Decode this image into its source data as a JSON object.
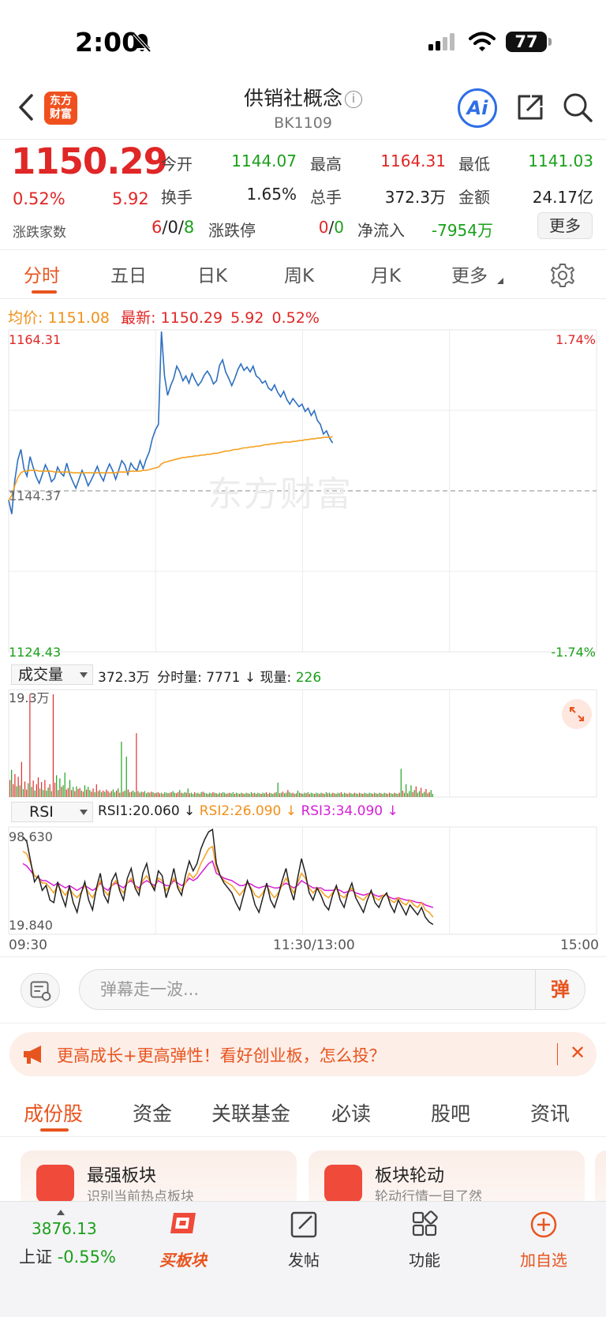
{
  "status_bar": {
    "time": "2:00",
    "battery": "77"
  },
  "header": {
    "back_icon": "chevron-left-icon",
    "logo_text": "东方\n财富",
    "title": "供销社概念",
    "code": "BK1109",
    "ai_label": "Ai"
  },
  "quote": {
    "price": "1150.29",
    "change_pct": "0.52%",
    "change_val": "5.92",
    "open_label": "今开",
    "open": "1144.07",
    "high_label": "最高",
    "high": "1164.31",
    "low_label": "最低",
    "low": "1141.03",
    "turnover_label": "换手",
    "turnover": "1.65%",
    "volume_label": "总手",
    "volume": "372.3万",
    "amount_label": "金额",
    "amount": "24.17亿",
    "updown_label": "涨跌家数",
    "up_count": "6",
    "flat_count": "0",
    "down_count": "8",
    "limit_label": "涨跌停",
    "limit_up": "0",
    "limit_down": "0",
    "netflow_label": "净流入",
    "netflow": "-7954万",
    "more_label": "更多"
  },
  "chart_tabs": [
    "分时",
    "五日",
    "日K",
    "周K",
    "月K",
    "更多"
  ],
  "legend": {
    "avg_label": "均价:",
    "avg": "1151.08",
    "latest_label": "最新:",
    "latest": "1150.29",
    "change": "5.92",
    "pct": "0.52%"
  },
  "watermark": "东方财富",
  "volume_panel": {
    "select": "成交量",
    "total": "372.3万",
    "minute_label": "分时量:",
    "minute": "7771",
    "now_label": "现量:",
    "now": "226",
    "max_label": "19.3万"
  },
  "rsi_panel": {
    "select": "RSI",
    "rsi1": "RSI1:20.060",
    "rsi2": "RSI2:26.090",
    "rsi3": "RSI3:34.090",
    "max_label": "98.630",
    "min_label": "19.840"
  },
  "time_axis": {
    "start": "09:30",
    "mid": "11:30/13:00",
    "end": "15:00"
  },
  "danmaku": {
    "placeholder": "弹幕走一波...",
    "send_label": "弹"
  },
  "ad": {
    "text": "更高成长+更高弹性！看好创业板，怎么投？",
    "close": "✕"
  },
  "info_tabs": [
    "成份股",
    "资金",
    "关联基金",
    "必读",
    "股吧",
    "资讯"
  ],
  "cards": [
    {
      "title": "最强板块",
      "sub": "识别当前热点板块"
    },
    {
      "title": "板块轮动",
      "sub": "轮动行情一目了然"
    }
  ],
  "bottom_bar": {
    "index_value": "3876.13",
    "index_name": "上证",
    "index_change": "-0.55%",
    "buy_sector": "买板块",
    "post": "发帖",
    "functions": "功能",
    "add_watch": "加自选"
  },
  "colors": {
    "up": "#e02626",
    "down": "#1aa01a",
    "accent": "#e8541e",
    "price_line": "#2e6fbf",
    "avg_line": "#f5a020"
  },
  "chart_data": [
    {
      "type": "line",
      "name": "intraday",
      "y_max_label": "1164.31",
      "y_min_label": "1124.43",
      "y_ref_label": "1144.37",
      "pct_max_label": "1.74%",
      "pct_min_label": "-1.74%",
      "ylim": [
        1124.43,
        1164.31
      ],
      "ref": 1144.37,
      "series": [
        {
          "values": [
            1143.2,
            1141.5,
            1145.6,
            1148.2,
            1149.5,
            1147.1,
            1146.2,
            1148.6,
            1147.3,
            1146.1,
            1145.3,
            1146.4,
            1147.6,
            1146.8,
            1145.5,
            1145.9,
            1147.3,
            1146.6,
            1146.2,
            1147.8,
            1146.4,
            1145.5,
            1144.7,
            1145.8,
            1146.9,
            1146.1,
            1145.0,
            1145.7,
            1146.5,
            1147.4,
            1146.3,
            1145.6,
            1146.8,
            1147.7,
            1146.9,
            1145.8,
            1146.9,
            1148.1,
            1147.6,
            1146.4,
            1147.8,
            1147.2,
            1146.9,
            1148.1,
            1147.1,
            1148.3,
            1149.2,
            1150.8,
            1151.9,
            1152.6,
            1164.1,
            1158.6,
            1156.2,
            1157.4,
            1158.3,
            1159.8,
            1159.1,
            1158.0,
            1158.6,
            1157.7,
            1158.9,
            1158.1,
            1157.4,
            1157.9,
            1158.7,
            1159.2,
            1158.6,
            1157.6,
            1158.0,
            1159.9,
            1160.6,
            1159.1,
            1158.3,
            1157.4,
            1158.3,
            1159.4,
            1160.1,
            1159.3,
            1159.7,
            1159.1,
            1159.8,
            1158.6,
            1158.3,
            1157.7,
            1158.0,
            1157.1,
            1156.8,
            1157.5,
            1156.6,
            1156.0,
            1156.7,
            1155.7,
            1155.1,
            1155.8,
            1155.3,
            1154.8,
            1155.1,
            1154.2,
            1154.6,
            1153.7,
            1154.3,
            1153.1,
            1152.6,
            1151.4,
            1151.8,
            1150.9,
            1150.29
          ]
        },
        {
          "values": [
            1143.2,
            1143.8,
            1145.0,
            1146.0,
            1146.6,
            1146.8,
            1146.8,
            1146.9,
            1146.9,
            1146.9,
            1146.8,
            1146.8,
            1146.8,
            1146.8,
            1146.8,
            1146.7,
            1146.7,
            1146.7,
            1146.7,
            1146.7,
            1146.7,
            1146.6,
            1146.6,
            1146.6,
            1146.6,
            1146.6,
            1146.6,
            1146.6,
            1146.6,
            1146.6,
            1146.6,
            1146.6,
            1146.6,
            1146.6,
            1146.6,
            1146.6,
            1146.7,
            1146.7,
            1146.7,
            1146.7,
            1146.8,
            1146.8,
            1146.8,
            1146.8,
            1146.9,
            1146.9,
            1147.0,
            1147.1,
            1147.2,
            1147.3,
            1147.7,
            1147.9,
            1148.0,
            1148.1,
            1148.2,
            1148.3,
            1148.4,
            1148.5,
            1148.5,
            1148.6,
            1148.6,
            1148.7,
            1148.7,
            1148.8,
            1148.8,
            1148.9,
            1148.9,
            1149.0,
            1149.0,
            1149.1,
            1149.2,
            1149.3,
            1149.3,
            1149.4,
            1149.5,
            1149.5,
            1149.6,
            1149.7,
            1149.7,
            1149.8,
            1149.8,
            1149.9,
            1149.9,
            1150.0,
            1150.1,
            1150.1,
            1150.2,
            1150.2,
            1150.3,
            1150.3,
            1150.4,
            1150.4,
            1150.4,
            1150.5,
            1150.5,
            1150.6,
            1150.6,
            1150.7,
            1150.7,
            1150.8,
            1150.8,
            1150.9,
            1150.9,
            1151.0,
            1151.0,
            1151.0,
            1151.08
          ]
        }
      ]
    },
    {
      "type": "bar",
      "name": "volume",
      "ymax": 19.3,
      "values": [
        3.2,
        5.1,
        2.4,
        4.3,
        2.0,
        3.8,
        2.2,
        6.6,
        1.5,
        2.9,
        1.4,
        2.6,
        19.3,
        1.9,
        3.1,
        1.2,
        2.4,
        3.7,
        1.6,
        2.8,
        1.3,
        3.2,
        1.2,
        1.8,
        2.4,
        1.1,
        19.3,
        2.7,
        4.1,
        1.3,
        3.5,
        1.9,
        2.2,
        4.6,
        1.4,
        1.7,
        3.2,
        1.3,
        1.9,
        1.1,
        2.0,
        1.5,
        1.7,
        1.2,
        1.0,
        2.2,
        1.4,
        1.9,
        1.3,
        1.0,
        1.6,
        0.9,
        2.4,
        1.1,
        1.3,
        0.9,
        1.2,
        1.0,
        1.4,
        1.1,
        0.8,
        1.1,
        1.4,
        0.9,
        1.2,
        1.6,
        0.8,
        10.4,
        1.0,
        1.2,
        7.6,
        1.4,
        0.9,
        1.0,
        1.2,
        0.9,
        12.0,
        1.1,
        0.8,
        1.0,
        0.9,
        1.1,
        0.7,
        0.9,
        0.8,
        1.0,
        0.9,
        0.7,
        0.8,
        0.9,
        0.7,
        0.8,
        0.6,
        0.9,
        0.8,
        0.7,
        0.8,
        0.9,
        1.1,
        0.8,
        0.7,
        0.9,
        1.3,
        0.8,
        0.7,
        0.9,
        0.8,
        1.6,
        0.7,
        0.8,
        0.6,
        0.9,
        0.7,
        0.8,
        0.6,
        0.9,
        1.0,
        0.8,
        0.7,
        0.6,
        0.8,
        0.7,
        0.9,
        0.8,
        0.7,
        0.6,
        0.8,
        0.7,
        0.9,
        0.8,
        0.6,
        0.7,
        0.8,
        0.7,
        0.9,
        0.6,
        0.8,
        0.7,
        0.6,
        0.8,
        0.7,
        0.6,
        0.8,
        0.7,
        0.6,
        0.9,
        0.7,
        0.8,
        0.6,
        0.8,
        0.7,
        0.6,
        0.8,
        0.7,
        0.9,
        0.6,
        0.8,
        0.7,
        0.6,
        0.8,
        0.9,
        2.7,
        0.7,
        0.8,
        1.0,
        0.7,
        0.8,
        1.3,
        0.9,
        0.7,
        0.8,
        0.6,
        0.7,
        1.2,
        0.8,
        0.7,
        0.6,
        0.8,
        0.7,
        0.9,
        0.6,
        0.8,
        0.7,
        0.6,
        0.8,
        0.7,
        0.6,
        0.8,
        0.7,
        0.6,
        0.9,
        0.7,
        0.8,
        0.6,
        0.8,
        0.7,
        0.6,
        0.8,
        0.7,
        0.9,
        0.6,
        0.8,
        0.7,
        0.6,
        0.8,
        0.7,
        0.6,
        0.8,
        0.7,
        0.6,
        0.8,
        0.7,
        0.6,
        0.8,
        0.7,
        0.6,
        0.8,
        0.7,
        0.6,
        0.8,
        0.7,
        0.6,
        0.8,
        0.7,
        0.6,
        0.8,
        0.7,
        0.6,
        0.8,
        0.7,
        0.6,
        0.8,
        0.7,
        0.6,
        0.8,
        5.3,
        1.2,
        0.8,
        2.4,
        0.7,
        1.1,
        2.2,
        0.9,
        1.3,
        2.0,
        0.8,
        1.1,
        1.7,
        0.7,
        1.0,
        1.5,
        0.7,
        0.9,
        1.3,
        0.6
      ],
      "up": [
        1,
        0,
        1,
        1,
        0,
        1,
        0,
        1,
        0,
        1,
        1,
        0,
        1,
        0,
        1,
        0,
        1,
        1,
        0,
        1,
        0,
        1,
        0,
        0,
        1,
        0,
        1,
        1,
        0,
        1,
        0,
        1,
        0,
        0,
        1,
        1,
        0,
        1,
        0,
        1,
        0,
        1,
        1,
        0,
        1,
        0,
        1,
        0,
        0,
        1,
        1,
        0,
        1,
        0,
        1,
        0,
        1,
        0,
        1,
        1,
        0,
        1,
        0,
        0,
        1,
        0,
        1,
        0,
        1,
        0,
        0,
        1,
        0,
        1,
        0,
        0,
        1,
        0,
        1,
        0,
        1,
        0,
        0,
        1,
        0,
        1,
        0,
        1,
        0,
        1,
        1,
        0,
        1,
        0,
        0,
        1,
        0,
        1,
        0,
        0,
        1,
        1,
        0,
        1,
        0,
        0,
        1,
        0,
        1,
        0,
        0,
        1,
        0,
        0,
        1,
        0,
        1,
        0,
        0,
        1,
        0,
        0,
        1,
        0,
        1,
        0,
        0,
        1,
        0,
        0,
        1,
        0,
        1,
        0,
        0,
        1,
        0,
        0,
        1,
        0,
        1,
        0,
        0,
        1,
        0,
        0,
        1,
        0,
        1,
        0,
        0,
        1,
        0,
        0,
        1,
        0,
        1,
        0,
        0,
        1,
        0,
        0,
        1,
        0,
        1,
        0,
        0,
        1,
        0,
        0,
        1,
        0,
        1,
        0,
        0,
        1,
        0,
        0,
        1,
        0,
        1,
        0,
        0,
        1,
        0,
        0,
        1,
        0,
        1,
        0,
        0,
        1,
        0,
        0,
        1,
        0,
        1,
        0,
        0,
        1,
        0,
        0,
        1,
        0,
        1,
        0,
        0,
        1,
        0,
        0,
        1,
        0,
        1,
        0,
        0,
        1,
        0,
        0,
        1,
        0,
        1,
        0,
        0,
        1,
        0,
        0,
        1,
        0,
        1,
        0,
        0,
        1,
        0,
        0,
        1,
        0,
        1,
        0,
        0,
        1,
        0,
        0,
        1,
        0,
        1,
        0,
        0,
        1,
        0,
        0,
        1,
        0,
        1,
        0,
        0,
        1,
        0,
        0,
        1,
        0
      ]
    },
    {
      "type": "line",
      "name": "rsi",
      "ylim": [
        19.84,
        98.63
      ],
      "series": [
        {
          "name": "RSI1",
          "values": [
            92,
            88,
            72,
            55,
            60,
            48,
            52,
            40,
            38,
            55,
            44,
            35,
            52,
            38,
            30,
            45,
            55,
            40,
            32,
            50,
            62,
            44,
            38,
            56,
            62,
            48,
            40,
            58,
            66,
            50,
            44,
            62,
            70,
            54,
            48,
            64,
            60,
            42,
            52,
            66,
            50,
            44,
            60,
            72,
            64,
            70,
            82,
            90,
            96,
            98,
            70,
            60,
            54,
            50,
            46,
            38,
            32,
            44,
            56,
            48,
            36,
            30,
            42,
            54,
            40,
            34,
            44,
            56,
            66,
            50,
            40,
            58,
            74,
            62,
            46,
            40,
            50,
            44,
            36,
            32,
            44,
            52,
            40,
            34,
            46,
            54,
            42,
            36,
            30,
            40,
            48,
            38,
            34,
            42,
            46,
            36,
            30,
            40,
            34,
            28,
            36,
            32,
            28,
            34,
            26,
            22,
            20
          ]
        },
        {
          "name": "RSI2",
          "values": [
            80,
            78,
            70,
            60,
            58,
            54,
            54,
            50,
            46,
            52,
            48,
            44,
            50,
            45,
            42,
            46,
            52,
            46,
            42,
            48,
            56,
            48,
            44,
            52,
            56,
            50,
            46,
            54,
            58,
            52,
            48,
            56,
            60,
            54,
            50,
            58,
            56,
            48,
            52,
            58,
            52,
            48,
            54,
            62,
            58,
            62,
            70,
            76,
            82,
            84,
            66,
            60,
            56,
            54,
            52,
            48,
            44,
            48,
            54,
            50,
            44,
            42,
            46,
            52,
            46,
            42,
            46,
            52,
            58,
            52,
            46,
            54,
            62,
            58,
            50,
            46,
            50,
            48,
            44,
            42,
            46,
            50,
            44,
            42,
            46,
            50,
            44,
            42,
            40,
            44,
            46,
            42,
            40,
            44,
            44,
            40,
            38,
            42,
            38,
            36,
            40,
            36,
            34,
            38,
            32,
            30,
            26
          ]
        },
        {
          "name": "RSI3",
          "values": [
            70,
            68,
            64,
            60,
            58,
            56,
            56,
            54,
            52,
            54,
            52,
            50,
            52,
            50,
            48,
            50,
            52,
            50,
            48,
            50,
            54,
            50,
            48,
            52,
            54,
            52,
            50,
            54,
            56,
            52,
            50,
            54,
            56,
            54,
            52,
            56,
            54,
            52,
            52,
            56,
            54,
            52,
            54,
            58,
            56,
            58,
            62,
            66,
            70,
            72,
            62,
            60,
            58,
            57,
            56,
            54,
            52,
            52,
            54,
            53,
            51,
            50,
            51,
            52,
            51,
            50,
            50,
            52,
            54,
            52,
            50,
            52,
            56,
            54,
            52,
            50,
            50,
            50,
            48,
            48,
            48,
            49,
            48,
            46,
            47,
            48,
            46,
            45,
            44,
            45,
            46,
            44,
            43,
            44,
            44,
            42,
            41,
            42,
            41,
            40,
            40,
            39,
            38,
            38,
            36,
            35,
            34
          ]
        }
      ]
    }
  ]
}
